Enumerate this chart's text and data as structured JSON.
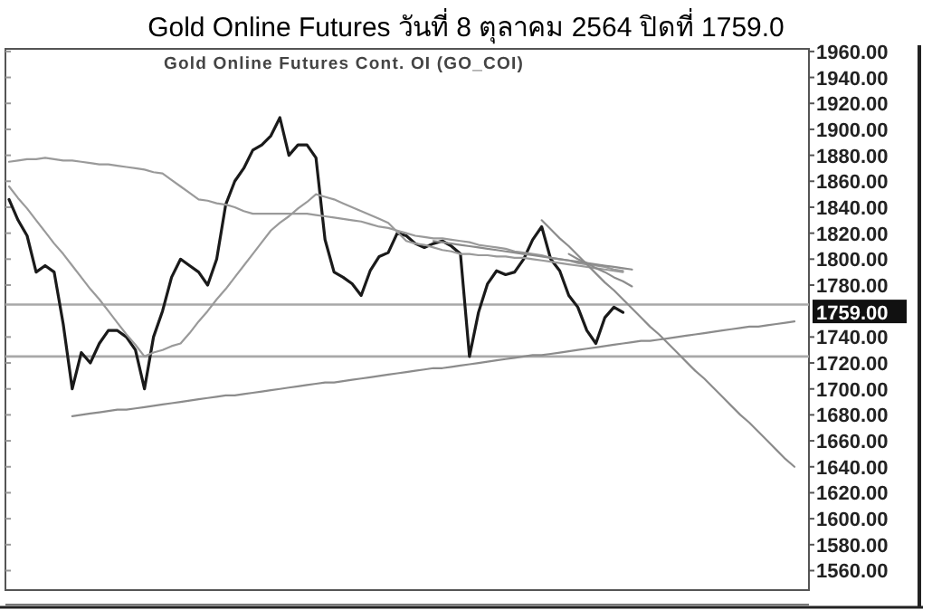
{
  "chart_data": {
    "type": "line",
    "title": "Gold Online Futures วันที่ 8 ตุลาคม 2564 ปิดที่ 1759.0",
    "subtitle": "Gold Online Futures Cont. OI (GO_COI)",
    "categories": [
      null,
      null,
      null,
      null,
      null,
      null,
      null,
      null,
      null,
      null,
      null,
      null,
      null,
      null,
      null,
      null,
      null,
      null,
      null,
      null,
      null,
      null,
      null,
      null,
      null,
      null,
      null,
      null,
      null,
      null,
      null,
      null,
      null,
      null,
      null,
      null,
      null,
      null,
      null,
      null,
      null,
      null,
      null,
      null,
      null,
      null,
      null,
      null,
      null,
      null,
      null,
      null,
      null,
      null,
      null,
      null,
      null,
      null,
      null,
      null,
      null,
      null,
      null,
      null,
      null,
      null,
      null,
      null,
      null,
      null,
      null,
      null,
      null,
      null,
      null,
      null,
      null,
      null,
      null,
      null,
      null,
      null,
      null,
      null,
      null,
      null,
      null,
      null,
      null
    ],
    "series": [
      {
        "color": "#1a1a1a",
        "values": [
          1846,
          1830,
          1818,
          1790,
          1795,
          1790,
          1750,
          1700,
          1728,
          1720,
          1735,
          1745,
          1745,
          1740,
          1730,
          1700,
          1740,
          1760,
          1786,
          1800,
          1795,
          1790,
          1780,
          1800,
          1842,
          1860,
          1870,
          1884,
          1888,
          1895,
          1909,
          1880,
          1888,
          1888,
          1878,
          1815,
          1790,
          1786,
          1781,
          1772,
          1791,
          1802,
          1805,
          1820,
          1818,
          1812,
          1809,
          1812,
          1814,
          1810,
          1804,
          1725,
          1759,
          1781,
          1791,
          1788,
          1790,
          1800,
          1815,
          1825,
          1800,
          1791,
          1772,
          1763,
          1745,
          1735,
          1755,
          1763,
          1759,
          null,
          null,
          null,
          null,
          null,
          null,
          null,
          null,
          null,
          null,
          null,
          null,
          null,
          null,
          null,
          null,
          null,
          null,
          null,
          null
        ]
      },
      {
        "color": "#9a9a9a",
        "values": [
          1875,
          1876,
          1877,
          1877,
          1878,
          1877,
          1876,
          1876,
          1875,
          1874,
          1873,
          1873,
          1872,
          1871,
          1870,
          1869,
          1867,
          1866,
          1861,
          1856,
          1851,
          1846,
          1845,
          1843,
          1842,
          1840,
          1837,
          1835,
          1835,
          1835,
          1835,
          1835,
          1835,
          1835,
          1834,
          1833,
          1832,
          1831,
          1830,
          1829,
          1827,
          1825,
          1824,
          1822,
          1820,
          1818,
          1817,
          1816,
          1816,
          1815,
          1814,
          1813,
          1811,
          1810,
          1809,
          1808,
          1806,
          1805,
          1804,
          1803,
          1801,
          1800,
          1799,
          1797,
          1796,
          1795,
          1794,
          1792,
          1791,
          null,
          null,
          null,
          null,
          null,
          null,
          null,
          null,
          null,
          null,
          null,
          null,
          null,
          null,
          null,
          null,
          null,
          null,
          null,
          null
        ]
      },
      {
        "color": "#9a9a9a",
        "values": [
          1856,
          1847,
          1839,
          1830,
          1821,
          1812,
          1804,
          1795,
          1786,
          1777,
          1769,
          1760,
          1751,
          1742,
          1734,
          1725,
          1728,
          1730,
          1733,
          1735,
          1743,
          1752,
          1760,
          1769,
          1777,
          1786,
          1795,
          1804,
          1813,
          1822,
          1828,
          1833,
          1839,
          1844,
          1850,
          1848,
          1846,
          1843,
          1840,
          1837,
          1834,
          1831,
          1828,
          1821,
          1814,
          1812,
          1811,
          1809,
          1807,
          1806,
          1804,
          1804,
          1803,
          1803,
          1802,
          1802,
          1801,
          1801,
          1800,
          1799,
          1798,
          1797,
          1796,
          1795,
          1794,
          1793,
          1792,
          1791,
          1790,
          null,
          null,
          null,
          null,
          null,
          null,
          null,
          null,
          null,
          null,
          null,
          null,
          null,
          null,
          null,
          null,
          null,
          null,
          null,
          null
        ]
      },
      {
        "color": "#8c8c8c",
        "values": [
          null,
          null,
          null,
          null,
          null,
          null,
          null,
          1679,
          1680,
          1681,
          1682,
          1683,
          1684,
          1684,
          1685,
          1686,
          1687,
          1688,
          1689,
          1690,
          1691,
          1692,
          1693,
          1694,
          1695,
          1695,
          1696,
          1697,
          1698,
          1699,
          1700,
          1701,
          1702,
          1703,
          1704,
          1705,
          1705,
          1706,
          1707,
          1708,
          1709,
          1710,
          1711,
          1712,
          1713,
          1714,
          1715,
          1716,
          1716,
          1717,
          1718,
          1719,
          1720,
          1721,
          1722,
          1723,
          1724,
          1725,
          1726,
          1726,
          1727,
          1728,
          1729,
          1730,
          1731,
          1732,
          1733,
          1734,
          1735,
          1736,
          1737,
          1737,
          1738,
          1739,
          1740,
          1741,
          1742,
          1743,
          1744,
          1745,
          1746,
          1747,
          1748,
          1748,
          1749,
          1750,
          1751,
          1752,
          null
        ]
      },
      {
        "color": "#8c8c8c",
        "values": [
          null,
          null,
          null,
          null,
          null,
          null,
          null,
          null,
          null,
          null,
          null,
          null,
          null,
          null,
          null,
          null,
          null,
          null,
          null,
          null,
          null,
          null,
          null,
          null,
          null,
          null,
          null,
          null,
          null,
          null,
          null,
          null,
          null,
          null,
          null,
          null,
          null,
          null,
          null,
          null,
          null,
          null,
          null,
          null,
          null,
          null,
          null,
          null,
          null,
          null,
          null,
          null,
          null,
          null,
          null,
          null,
          null,
          null,
          null,
          1830,
          1823,
          1816,
          1810,
          1803,
          1796,
          1789,
          1782,
          1776,
          1769,
          1762,
          1755,
          1748,
          1742,
          1735,
          1728,
          1721,
          1714,
          1708,
          1701,
          1694,
          1687,
          1680,
          1674,
          1667,
          1660,
          1653,
          1646,
          1640,
          null
        ]
      },
      {
        "color": "#8c8c8c",
        "values": [
          null,
          null,
          null,
          null,
          null,
          null,
          null,
          null,
          null,
          null,
          null,
          null,
          null,
          null,
          null,
          null,
          null,
          null,
          null,
          null,
          null,
          null,
          null,
          null,
          null,
          null,
          null,
          null,
          null,
          null,
          null,
          null,
          null,
          null,
          null,
          null,
          null,
          null,
          null,
          null,
          null,
          null,
          null,
          null,
          null,
          null,
          null,
          1814,
          1813,
          1812,
          1811,
          1810,
          1809,
          1808,
          1807,
          1806,
          1805,
          1804,
          1803,
          1802,
          1801,
          1800,
          1799,
          1798,
          1797,
          1796,
          1795,
          1794,
          1793,
          1792,
          null,
          null,
          null,
          null,
          null,
          null,
          null,
          null,
          null,
          null,
          null,
          null,
          null,
          null,
          null,
          null,
          null,
          null,
          null
        ]
      },
      {
        "color": "#8c8c8c",
        "values": [
          null,
          null,
          null,
          null,
          null,
          null,
          null,
          null,
          null,
          null,
          null,
          null,
          null,
          null,
          null,
          null,
          null,
          null,
          null,
          null,
          null,
          null,
          null,
          null,
          null,
          null,
          null,
          null,
          null,
          null,
          null,
          null,
          null,
          null,
          null,
          null,
          null,
          null,
          null,
          null,
          null,
          null,
          null,
          null,
          null,
          null,
          null,
          null,
          null,
          null,
          null,
          null,
          null,
          null,
          null,
          null,
          null,
          null,
          null,
          null,
          null,
          null,
          1804,
          1800,
          1797,
          1793,
          1790,
          1786,
          1783,
          1779,
          null,
          null,
          null,
          null,
          null,
          null,
          null,
          null,
          null,
          null,
          null,
          null,
          null,
          null,
          null,
          null,
          null,
          null,
          null
        ]
      }
    ],
    "ylim": [
      1545,
      1962
    ],
    "yticks": [
      {
        "value": 1560,
        "label": "1560.00"
      },
      {
        "value": 1580,
        "label": "1580.00"
      },
      {
        "value": 1600,
        "label": "1600.00"
      },
      {
        "value": 1620,
        "label": "1620.00"
      },
      {
        "value": 1640,
        "label": "1640.00"
      },
      {
        "value": 1660,
        "label": "1660.00"
      },
      {
        "value": 1680,
        "label": "1680.00"
      },
      {
        "value": 1700,
        "label": "1700.00"
      },
      {
        "value": 1720,
        "label": "1720.00"
      },
      {
        "value": 1740,
        "label": "1740.00"
      },
      {
        "value": 1780,
        "label": "1780.00"
      },
      {
        "value": 1800,
        "label": "1800.00"
      },
      {
        "value": 1820,
        "label": "1820.00"
      },
      {
        "value": 1840,
        "label": "1840.00"
      },
      {
        "value": 1860,
        "label": "1860.00"
      },
      {
        "value": 1880,
        "label": "1880.00"
      },
      {
        "value": 1900,
        "label": "1900.00"
      },
      {
        "value": 1920,
        "label": "1920.00"
      },
      {
        "value": 1940,
        "label": "1940.00"
      },
      {
        "value": 1960,
        "label": "1960.00"
      }
    ],
    "ref_lines": [
      {
        "axis": "y",
        "value": 1765,
        "color": "#a8a8a8"
      },
      {
        "axis": "y",
        "value": 1725,
        "color": "#a8a8a8"
      }
    ],
    "annotations": [
      "1759.00"
    ],
    "tick_labels": "y",
    "marker": "none",
    "line_style": "solid",
    "grid": false
  }
}
